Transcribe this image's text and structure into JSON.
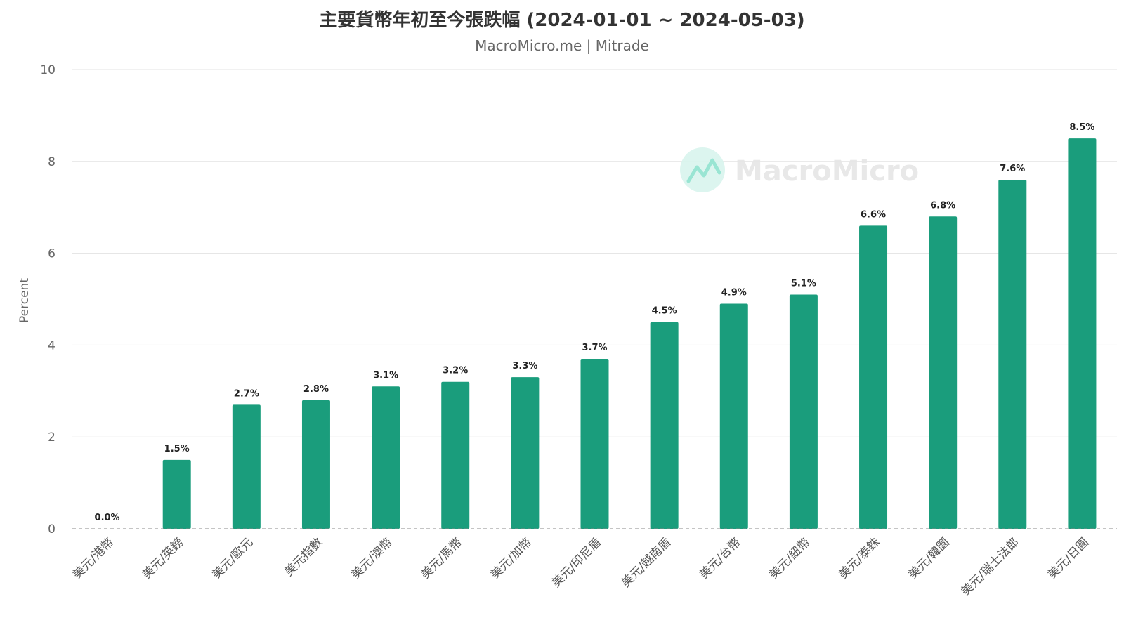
{
  "chart_data": {
    "type": "bar",
    "title": "主要貨幣年初至今張跌幅 (2024-01-01 ~ 2024-05-03)",
    "subtitle": "MacroMicro.me | Mitrade",
    "ylabel": "Percent",
    "ylim": [
      0,
      10
    ],
    "yticks": [
      0,
      2,
      4,
      6,
      8,
      10
    ],
    "grid": true,
    "bar_color": "#1a9d7c",
    "categories": [
      "美元/港幣",
      "美元/英鎊",
      "美元/歐元",
      "美元指數",
      "美元/澳幣",
      "美元/馬幣",
      "美元/加幣",
      "美元/印尼盾",
      "美元/越南盾",
      "美元/台幣",
      "美元/紐幣",
      "美元/泰銖",
      "美元/韓圜",
      "美元/瑞士法郎",
      "美元/日圓"
    ],
    "values": [
      0.0,
      1.5,
      2.7,
      2.8,
      3.1,
      3.2,
      3.3,
      3.7,
      4.5,
      4.9,
      5.1,
      6.6,
      6.8,
      7.6,
      8.5
    ],
    "value_labels": [
      "0.0%",
      "1.5%",
      "2.7%",
      "2.8%",
      "3.1%",
      "3.2%",
      "3.3%",
      "3.7%",
      "4.5%",
      "4.9%",
      "5.1%",
      "6.6%",
      "6.8%",
      "7.6%",
      "8.5%"
    ]
  },
  "watermark": {
    "text": "MacroMicro",
    "icon": "macromicro-logo-icon",
    "color": "#6fdcc3"
  }
}
